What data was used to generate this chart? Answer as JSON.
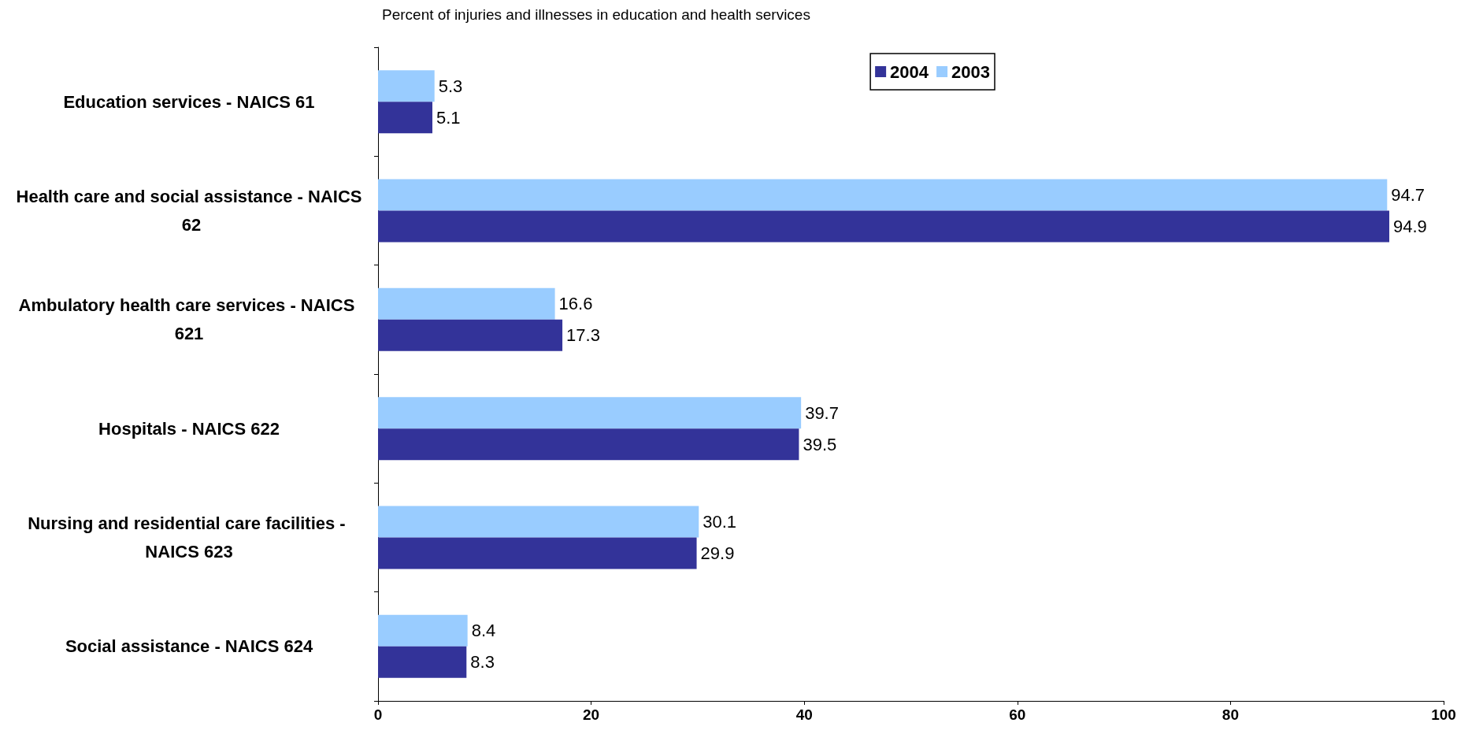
{
  "chart_data": {
    "type": "bar",
    "orientation": "horizontal",
    "title": "Percent of injuries and illnesses in education and health services",
    "categories": [
      "Education services - NAICS 61",
      "Health care and social assistance - NAICS 62",
      "Ambulatory health care services - NAICS 621",
      "Hospitals - NAICS 622",
      "Nursing and residential care facilities - NAICS 623",
      "Social assistance - NAICS 624"
    ],
    "series": [
      {
        "name": "2003",
        "color": "#99ccff",
        "values": [
          5.3,
          94.7,
          16.6,
          39.7,
          30.1,
          8.4
        ]
      },
      {
        "name": "2004",
        "color": "#333399",
        "values": [
          5.1,
          94.9,
          17.3,
          39.5,
          29.9,
          8.3
        ]
      }
    ],
    "xlim": [
      0,
      100
    ],
    "xticks": [
      0,
      20,
      40,
      60,
      80,
      100
    ],
    "data_labels": true,
    "legend": "top right",
    "grid": false
  }
}
